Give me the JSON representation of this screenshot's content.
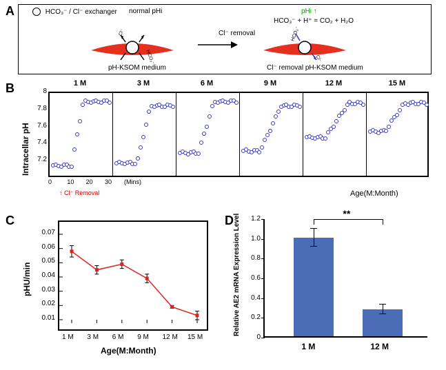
{
  "panelA": {
    "label": "A",
    "legend_label": "HCO₃⁻ / Cl⁻ exchanger",
    "normal_pHi": "normal pHi",
    "pH_KSOM": "pH-KSOM medium",
    "Cl_removal_arrow": "Cl⁻ removal",
    "pHi_up": "pHi",
    "reaction": "HCO₃⁻ + H⁺ = CO₂ + H₂O",
    "Cl_removal_medium": "Cl⁻ removal pH-KSOM medium",
    "ion_cl": "Cl⁻",
    "ion_hco3": "HCO₃⁻",
    "arc_color": "#e53020"
  },
  "panelB": {
    "label": "B",
    "y_label": "Intracellar pH",
    "y_ticks": [
      "7.2",
      "7.4",
      "7.6",
      "7.8",
      "8"
    ],
    "ylim": [
      7.0,
      8.0
    ],
    "x_ticks": [
      "0",
      "10",
      "20",
      "30"
    ],
    "x_unit": "(Mins)",
    "age_label": "Age(M:Month)",
    "cl_removal_label": "Cl⁻ Removal",
    "marker_color": "#3838c8",
    "subplots": [
      {
        "title": "1 M",
        "baseline": 7.15,
        "plateau": 7.9,
        "rise_start": 10,
        "rise_end": 16
      },
      {
        "title": "3 M",
        "baseline": 7.18,
        "plateau": 7.85,
        "rise_start": 11,
        "rise_end": 18
      },
      {
        "title": "6 M",
        "baseline": 7.3,
        "plateau": 7.9,
        "rise_start": 10,
        "rise_end": 18
      },
      {
        "title": "9 M",
        "baseline": 7.32,
        "plateau": 7.85,
        "rise_start": 9,
        "rise_end": 20
      },
      {
        "title": "12 M",
        "baseline": 7.48,
        "plateau": 7.88,
        "rise_start": 10,
        "rise_end": 22
      },
      {
        "title": "15 M",
        "baseline": 7.55,
        "plateau": 7.88,
        "rise_start": 8,
        "rise_end": 18
      }
    ]
  },
  "panelC": {
    "label": "C",
    "y_label": "pHU/min",
    "x_label": "Age(M:Month)",
    "y_ticks": [
      "0.01",
      "0.02",
      "0.03",
      "0.04",
      "0.05",
      "0.06",
      "0.07"
    ],
    "ylim": [
      0.01,
      0.07
    ],
    "x_ticks": [
      "1 M",
      "3 M",
      "6 M",
      "9 M",
      "12 M",
      "15 M"
    ],
    "line_color": "#e02020",
    "points": [
      {
        "x": 0,
        "y": 0.058,
        "err": 0.004
      },
      {
        "x": 1,
        "y": 0.045,
        "err": 0.003
      },
      {
        "x": 2,
        "y": 0.049,
        "err": 0.003
      },
      {
        "x": 3,
        "y": 0.039,
        "err": 0.003
      },
      {
        "x": 4,
        "y": 0.019,
        "err": 0.001
      },
      {
        "x": 5,
        "y": 0.013,
        "err": 0.003
      }
    ]
  },
  "panelD": {
    "label": "D",
    "y_label": "Relative AE2 mRNA Expression Level",
    "y_ticks": [
      "0",
      "0.2",
      "0.4",
      "0.6",
      "0.8",
      "1.0",
      "1.2"
    ],
    "ylim": [
      0,
      1.2
    ],
    "sig": "**",
    "bar_color": "#4a6db5",
    "bars": [
      {
        "label": "1 M",
        "value": 1.0,
        "err": 0.09
      },
      {
        "label": "12 M",
        "value": 0.27,
        "err": 0.05
      }
    ]
  }
}
